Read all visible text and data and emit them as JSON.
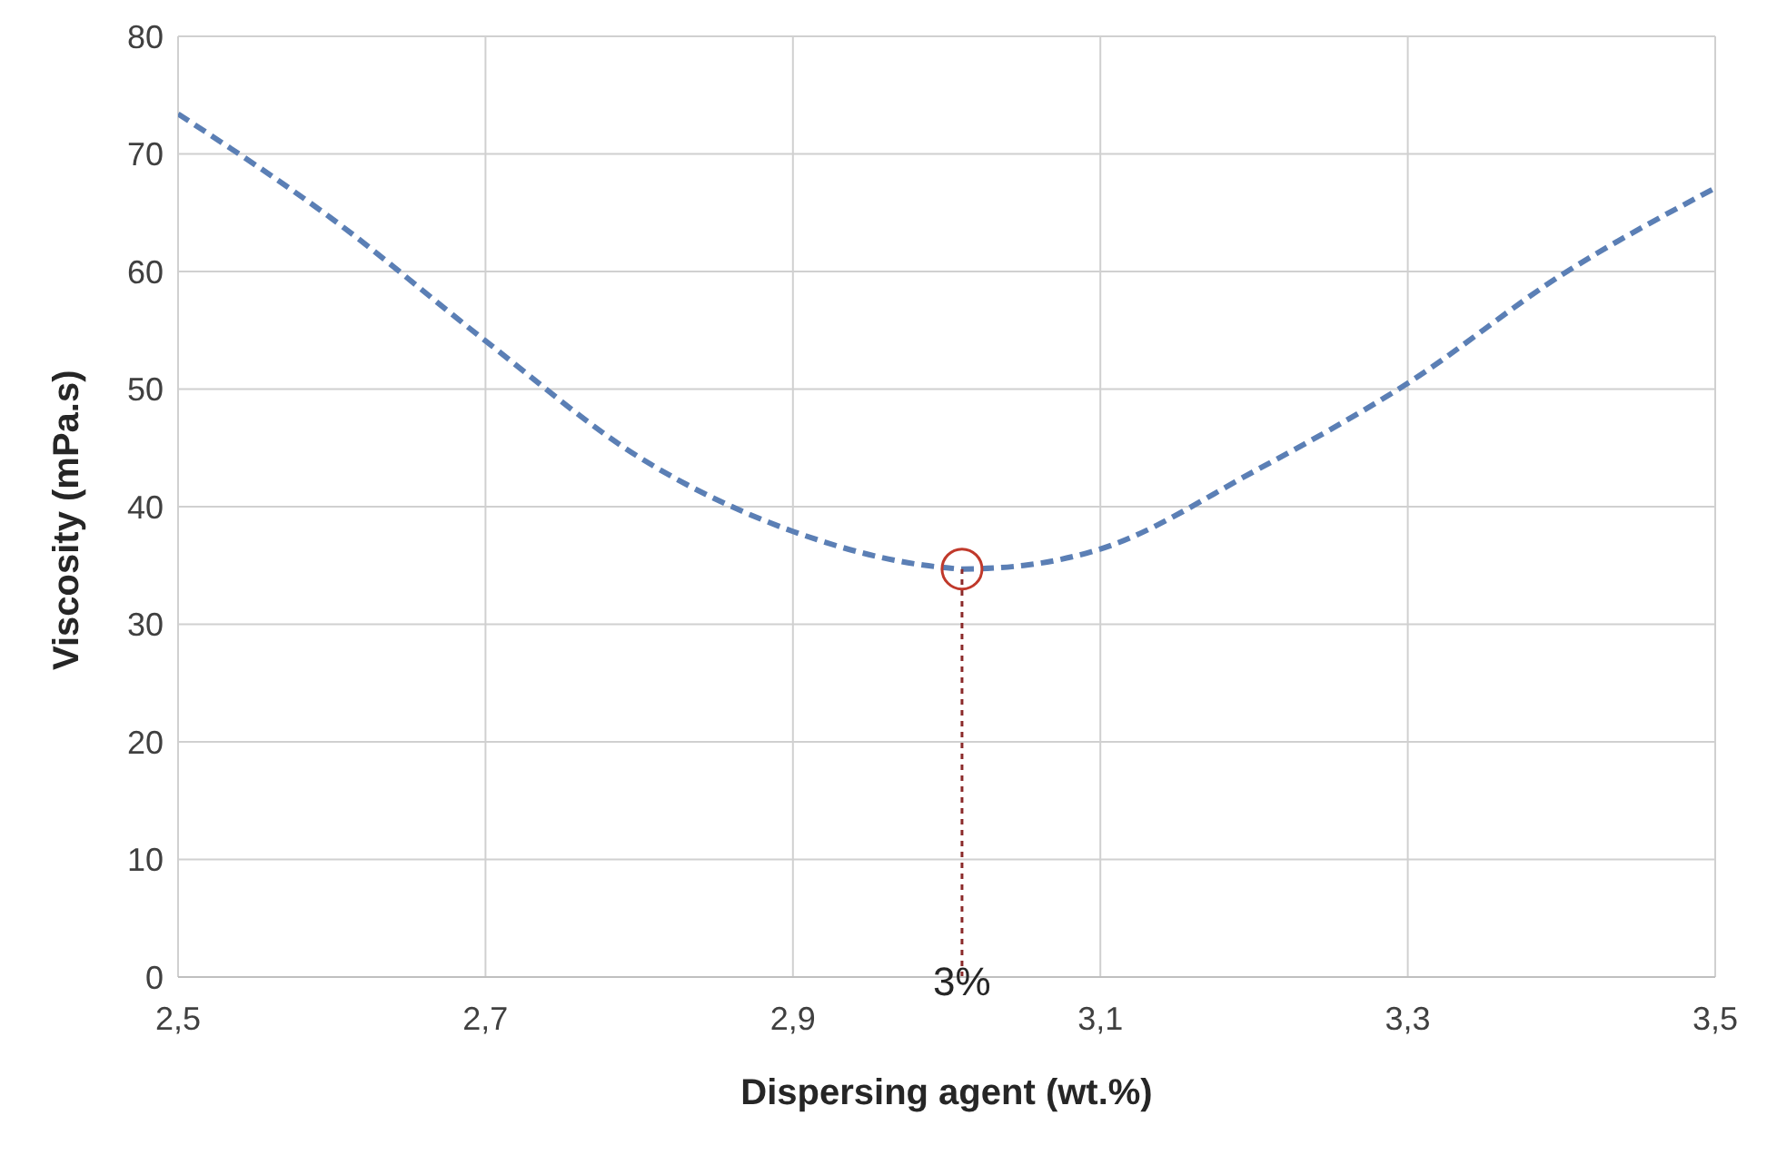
{
  "chart_data": {
    "type": "line",
    "xlabel": "Dispersing agent (wt.%)",
    "ylabel": "Viscosity (mPa.s)",
    "xlim": [
      2.5,
      3.5
    ],
    "xticks": [
      {
        "value": 2.5,
        "label": "2,5"
      },
      {
        "value": 2.7,
        "label": "2,7"
      },
      {
        "value": 2.9,
        "label": "2,9"
      },
      {
        "value": 3.1,
        "label": "3,1"
      },
      {
        "value": 3.3,
        "label": "3,3"
      },
      {
        "value": 3.5,
        "label": "3,5"
      }
    ],
    "ylim": [
      0,
      80
    ],
    "yticks": [
      0,
      10,
      20,
      30,
      40,
      50,
      60,
      70,
      80
    ],
    "grid": true,
    "series": [
      {
        "color": "#5b7fb5",
        "line_style": "dashed",
        "marker": "none",
        "x": [
          2.5,
          2.6,
          2.7,
          2.8,
          2.9,
          3.0,
          3.01,
          3.05,
          3.1,
          3.2,
          3.3,
          3.4,
          3.5
        ],
        "values": [
          73.4,
          64.5,
          54.1,
          44.2,
          37.9,
          34.8,
          34.7,
          35.0,
          36.4,
          43.0,
          50.5,
          59.7,
          67.1
        ]
      },
      {
        "color": "#8b2a2a",
        "line_style": "dotted",
        "marker": "none",
        "x": [
          3.01,
          3.01
        ],
        "values": [
          0,
          34.7
        ]
      },
      {
        "type": "scatter",
        "color": "#c0392b",
        "marker": "circle",
        "x": [
          3.01
        ],
        "values": [
          34.7
        ]
      }
    ],
    "annotations": [
      {
        "text": "3%",
        "x": 3.01,
        "y": 0
      }
    ]
  }
}
